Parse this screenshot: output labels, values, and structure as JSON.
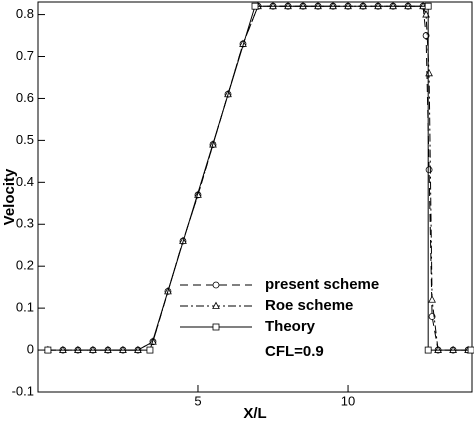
{
  "chart_data": {
    "type": "line",
    "xlabel": "X/L",
    "ylabel": "Velocity",
    "annotation": "CFL=0.9",
    "xlim": [
      -0.33,
      14.13
    ],
    "ylim": [
      -0.1,
      0.83
    ],
    "xticks": [
      5,
      10
    ],
    "yticks": [
      -0.1,
      0,
      0.1,
      0.2,
      0.3,
      0.4,
      0.5,
      0.6,
      0.7,
      0.8
    ],
    "series": [
      {
        "name": "present scheme",
        "color": "#000000",
        "marker": "circle",
        "dash": "8 5",
        "x": [
          0,
          0.5,
          1,
          1.5,
          2,
          2.5,
          3,
          3.5,
          4,
          4.5,
          5,
          5.5,
          6,
          6.5,
          7,
          7.5,
          8,
          8.5,
          9,
          9.5,
          10,
          10.5,
          11,
          11.5,
          12,
          12.5,
          12.6,
          12.7,
          12.8,
          13,
          13.5,
          14
        ],
        "values": [
          0,
          0,
          0,
          0,
          0,
          0,
          0,
          0.02,
          0.14,
          0.26,
          0.37,
          0.49,
          0.61,
          0.73,
          0.82,
          0.82,
          0.82,
          0.82,
          0.82,
          0.82,
          0.82,
          0.82,
          0.82,
          0.82,
          0.82,
          0.82,
          0.75,
          0.43,
          0.08,
          0,
          0,
          0
        ]
      },
      {
        "name": "Roe scheme",
        "color": "#000000",
        "marker": "triangle",
        "dash": "8 3 2 3",
        "x": [
          0,
          0.5,
          1,
          1.5,
          2,
          2.5,
          3,
          3.5,
          4,
          4.5,
          5,
          5.5,
          6,
          6.5,
          7,
          7.5,
          8,
          8.5,
          9,
          9.5,
          10,
          10.5,
          11,
          11.5,
          12,
          12.5,
          12.6,
          12.7,
          12.8,
          13,
          13.5,
          14
        ],
        "values": [
          0,
          0,
          0,
          0,
          0,
          0,
          0,
          0.02,
          0.14,
          0.26,
          0.37,
          0.49,
          0.61,
          0.73,
          0.82,
          0.82,
          0.82,
          0.82,
          0.82,
          0.82,
          0.82,
          0.82,
          0.82,
          0.82,
          0.82,
          0.82,
          0.8,
          0.66,
          0.12,
          0,
          0,
          0
        ]
      },
      {
        "name": "Theory",
        "color": "#000000",
        "marker": "square",
        "dash": "none",
        "x": [
          0,
          3.4,
          6.9,
          12.67,
          12.67,
          14.1
        ],
        "values": [
          0,
          0,
          0.82,
          0.82,
          0,
          0
        ]
      }
    ]
  }
}
